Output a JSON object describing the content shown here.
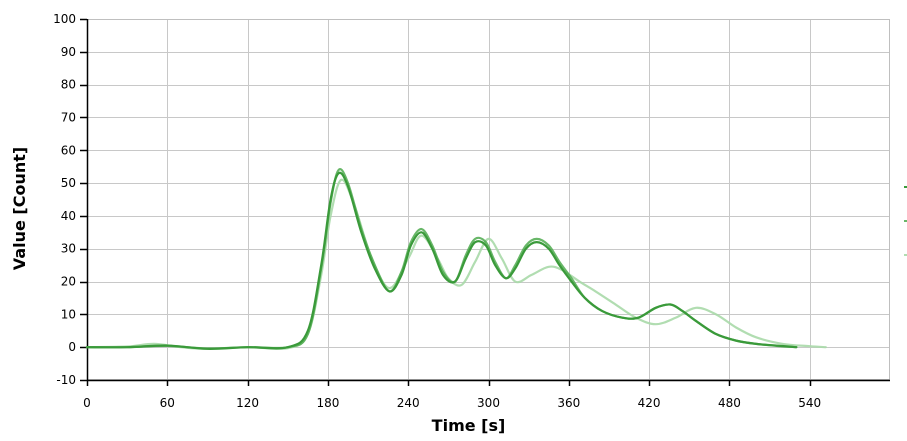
{
  "chart_data": {
    "type": "line",
    "title": "",
    "xlabel": "Time [s]",
    "ylabel": "Value [Count]",
    "xlim": [
      0,
      600
    ],
    "ylim": [
      -10,
      100
    ],
    "x_ticks": [
      0,
      60,
      120,
      180,
      240,
      300,
      360,
      420,
      480,
      540
    ],
    "y_ticks": [
      -10,
      0,
      10,
      20,
      30,
      40,
      50,
      60,
      70,
      80,
      90,
      100
    ],
    "grid": true,
    "legend_position": "right",
    "series": [
      {
        "color": "#3a9a3a",
        "opacity": 1.0,
        "x": [
          0,
          30,
          60,
          90,
          120,
          150,
          165,
          175,
          182,
          188,
          195,
          205,
          215,
          226,
          235,
          242,
          250,
          258,
          266,
          275,
          283,
          290,
          298,
          305,
          313,
          320,
          328,
          336,
          345,
          353,
          362,
          372,
          385,
          400,
          412,
          425,
          436,
          445,
          455,
          470,
          485,
          500,
          515,
          530
        ],
        "y": [
          0,
          0,
          0.5,
          -0.5,
          0,
          0,
          5,
          25,
          45,
          53,
          49,
          35,
          24,
          17,
          22,
          31,
          35,
          30,
          22,
          20,
          27,
          32,
          31,
          25,
          21,
          24,
          30,
          32,
          30,
          25,
          20,
          15,
          11,
          9,
          9,
          12,
          13,
          11,
          8,
          4,
          2,
          1,
          0.5,
          0
        ]
      },
      {
        "color": "#4eaa4e",
        "opacity": 0.85,
        "x": [
          0,
          30,
          60,
          90,
          120,
          150,
          165,
          175,
          182,
          188,
          195,
          205,
          215,
          226,
          235,
          242,
          250,
          258,
          266,
          275,
          283,
          290,
          298,
          305,
          313,
          320,
          328,
          336,
          345,
          353,
          362,
          372,
          385,
          400,
          412,
          425,
          436,
          445,
          455,
          470,
          485,
          500,
          515,
          530
        ],
        "y": [
          0,
          0,
          0.4,
          -0.4,
          0,
          0,
          4,
          24,
          44,
          54,
          50,
          36,
          25,
          17,
          23,
          32,
          36,
          31,
          23,
          20,
          28,
          33,
          32,
          26,
          21,
          25,
          31,
          33,
          31,
          26,
          21,
          15,
          11,
          9,
          9,
          12,
          13,
          11,
          8,
          4,
          2,
          1,
          0.4,
          0
        ]
      },
      {
        "color": "#a9d9a9",
        "opacity": 0.9,
        "x": [
          0,
          30,
          50,
          70,
          90,
          120,
          150,
          165,
          175,
          182,
          190,
          200,
          212,
          226,
          240,
          250,
          262,
          270,
          280,
          290,
          300,
          310,
          320,
          332,
          345,
          355,
          368,
          380,
          395,
          410,
          425,
          440,
          455,
          470,
          485,
          500,
          520,
          540,
          552
        ],
        "y": [
          0,
          0.2,
          1,
          0,
          -0.5,
          0,
          -0.3,
          4,
          22,
          40,
          51,
          43,
          28,
          18,
          27,
          34,
          27,
          21,
          19,
          26,
          33,
          27,
          20,
          22,
          24.5,
          23.5,
          20,
          17,
          13,
          9,
          7,
          9,
          12,
          10,
          6,
          3,
          1,
          0.3,
          0
        ]
      }
    ]
  }
}
